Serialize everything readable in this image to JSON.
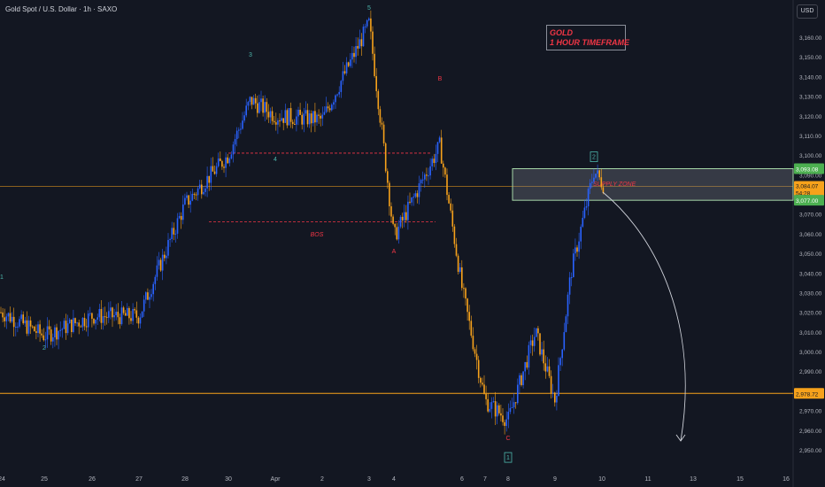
{
  "header": {
    "symbol": "Gold Spot / U.S. Dollar · 1h · SAXO",
    "currency_button": "USD"
  },
  "annotation_box": {
    "line1": "GOLD",
    "line2": "1 HOUR TIMEFRAME"
  },
  "colors": {
    "background": "#131722",
    "up": "#2962ff",
    "down": "#f7a21b",
    "zone_border": "#a5d6a7",
    "level_line": "#f7a21b",
    "bos_line": "#f23645",
    "wave_teal": "#4db6ac",
    "wave_red": "#f23645",
    "label_green": "#4caf50"
  },
  "chart_data": {
    "type": "candlestick",
    "symbol": "Gold Spot / U.S. Dollar",
    "interval": "1h",
    "source": "SAXO",
    "currency": "USD",
    "title": "GOLD 1 HOUR TIMEFRAME",
    "y_range": [
      2945,
      3172
    ],
    "y_ticks": [
      3160,
      3150,
      3140,
      3130,
      3120,
      3110,
      3100,
      3090,
      3080,
      3070,
      3060,
      3050,
      3040,
      3030,
      3020,
      3010,
      3000,
      2990,
      2980,
      2970,
      2960,
      2950
    ],
    "y_tick_labels": [
      "3,160.00",
      "3,150.00",
      "3,140.00",
      "3,130.00",
      "3,120.00",
      "3,110.00",
      "3,100.00",
      "3,090.00",
      "3,080.00",
      "3,070.00",
      "3,060.00",
      "3,050.00",
      "3,040.00",
      "3,030.00",
      "3,020.00",
      "3,010.00",
      "3,000.00",
      "2,990.00",
      "2,980.00",
      "2,970.00",
      "2,960.00",
      "2,950.00"
    ],
    "x_tick_labels": [
      "24",
      "25",
      "26",
      "27",
      "28",
      "30",
      "Apr",
      "2",
      "3",
      "4",
      "6",
      "7",
      "8",
      "9",
      "10",
      "11",
      "13",
      "15",
      "16"
    ],
    "key_points": [
      {
        "date": "24",
        "price": 3020
      },
      {
        "date": "25",
        "price": 3008
      },
      {
        "date": "26",
        "price": 3018
      },
      {
        "date": "27",
        "price": 3018
      },
      {
        "date": "28",
        "price": 3075
      },
      {
        "date": "30",
        "price": 3100
      },
      {
        "date": "31",
        "price": 3128
      },
      {
        "date": "Apr",
        "price": 3120
      },
      {
        "date": "2",
        "price": 3118
      },
      {
        "date": "3",
        "price": 3167
      },
      {
        "date": "3 (late)",
        "price": 3110
      },
      {
        "date": "4",
        "price": 3058
      },
      {
        "date": "4 (late)",
        "price": 3105
      },
      {
        "date": "6",
        "price": 3032
      },
      {
        "date": "7",
        "price": 2975
      },
      {
        "date": "8",
        "price": 2965
      },
      {
        "date": "8 (late)",
        "price": 3010
      },
      {
        "date": "9",
        "price": 2975
      },
      {
        "date": "9 (late)",
        "price": 3040
      },
      {
        "date": "10",
        "price": 3092
      },
      {
        "date": "10 (last)",
        "price": 3084.07
      }
    ],
    "current_price": {
      "label": "3,084.07",
      "value": 3084.07,
      "countdown": "54:28"
    },
    "supply_zone": {
      "label": "SUPPLY ZONE",
      "top": 3093.08,
      "bottom": 3077.0,
      "top_label": "3,093.08",
      "bottom_label": "3,077.00"
    },
    "horizontal_levels": [
      {
        "value": 2978.72,
        "label": "2,978.72"
      },
      {
        "value": 3084.07
      }
    ],
    "bos": {
      "label": "BOS",
      "value": 3066
    },
    "dashed_level": {
      "value": 3101
    },
    "wave_labels": [
      {
        "text": "1",
        "date": "24",
        "price": 3037,
        "color": "teal"
      },
      {
        "text": "2",
        "date": "25",
        "price": 3001,
        "color": "teal"
      },
      {
        "text": "3",
        "date": "31",
        "price": 3150,
        "color": "teal"
      },
      {
        "text": "4",
        "date": "Apr",
        "price": 3097,
        "color": "teal"
      },
      {
        "text": "5",
        "date": "3",
        "price": 3174,
        "color": "teal"
      },
      {
        "text": "A",
        "date": "4",
        "price": 3050,
        "color": "red"
      },
      {
        "text": "B",
        "date": "4 (late)",
        "price": 3138,
        "color": "red"
      },
      {
        "text": "C",
        "date": "8",
        "price": 2955,
        "color": "red"
      },
      {
        "text": "1",
        "date": "8",
        "price": 2945,
        "color": "teal",
        "boxed": true
      },
      {
        "text": "2",
        "date": "10",
        "price": 3098,
        "color": "teal",
        "boxed": true
      }
    ],
    "projection": {
      "from_price": 3080,
      "to_price": 2957,
      "direction": "down"
    }
  }
}
